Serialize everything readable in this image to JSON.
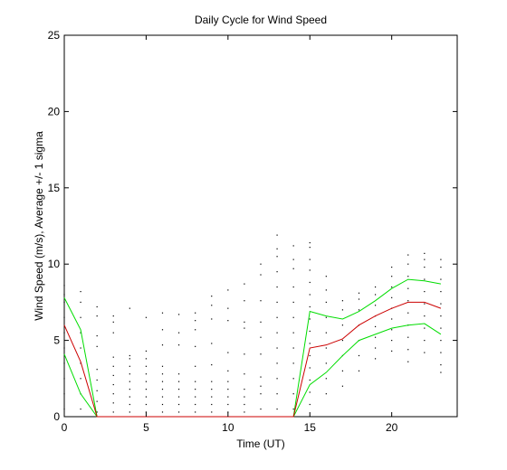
{
  "chart_data": {
    "type": "line",
    "title": "Daily Cycle for Wind Speed",
    "xlabel": "Time (UT)",
    "ylabel": "Wind Speed (m/s), Average +/- 1 sigma",
    "xlim": [
      0,
      24
    ],
    "ylim": [
      0,
      25
    ],
    "xticks": [
      0,
      5,
      10,
      15,
      20
    ],
    "yticks": [
      0,
      5,
      10,
      15,
      20,
      25
    ],
    "grid": false,
    "x": [
      0,
      1,
      2,
      3,
      4,
      5,
      6,
      7,
      8,
      9,
      10,
      11,
      12,
      13,
      14,
      15,
      16,
      17,
      18,
      19,
      20,
      21,
      22,
      23
    ],
    "series": [
      {
        "role": "mean",
        "color": "#cc0000",
        "values": [
          6.0,
          3.6,
          0,
          0,
          0,
          0,
          0,
          0,
          0,
          0,
          0,
          0,
          0,
          0,
          0,
          4.5,
          4.7,
          5.1,
          6.0,
          6.6,
          7.1,
          7.5,
          7.5,
          7.1
        ]
      },
      {
        "role": "mean+1sigma",
        "color": "#00dd00",
        "values": [
          7.8,
          5.7,
          0,
          0,
          0,
          0,
          0,
          0,
          0,
          0,
          0,
          0,
          0,
          0,
          0,
          6.9,
          6.6,
          6.4,
          6.9,
          7.6,
          8.4,
          9.0,
          8.9,
          8.7
        ]
      },
      {
        "role": "mean-1sigma",
        "color": "#00dd00",
        "values": [
          4.1,
          1.5,
          0,
          0,
          0,
          0,
          0,
          0,
          0,
          0,
          0,
          0,
          0,
          0,
          0,
          2.1,
          2.9,
          4.0,
          5.0,
          5.4,
          5.8,
          6.0,
          6.1,
          5.4
        ]
      }
    ],
    "scatter": {
      "color": "#000000",
      "points": [
        [
          0,
          0.5
        ],
        [
          0,
          1.5
        ],
        [
          0,
          2.5
        ],
        [
          0,
          3.5
        ],
        [
          0,
          4.5
        ],
        [
          0,
          5.5
        ],
        [
          0,
          6.5
        ],
        [
          0,
          7.5
        ],
        [
          0,
          8.0
        ],
        [
          0,
          8.6
        ],
        [
          1,
          0.5
        ],
        [
          1,
          1.5
        ],
        [
          1,
          2.5
        ],
        [
          1,
          3.5
        ],
        [
          1,
          4.5
        ],
        [
          1,
          5.5
        ],
        [
          1,
          6.5
        ],
        [
          1,
          7.5
        ],
        [
          1,
          8.2
        ],
        [
          2,
          0.3
        ],
        [
          2,
          1.0
        ],
        [
          2,
          1.7
        ],
        [
          2,
          2.4
        ],
        [
          2,
          3.1
        ],
        [
          2,
          4.6
        ],
        [
          2,
          5.3
        ],
        [
          2,
          6.6
        ],
        [
          2,
          7.2
        ],
        [
          3,
          0.3
        ],
        [
          3,
          0.9
        ],
        [
          3,
          1.5
        ],
        [
          3,
          2.1
        ],
        [
          3,
          2.7
        ],
        [
          3,
          3.3
        ],
        [
          3,
          3.9
        ],
        [
          3,
          5.5
        ],
        [
          3,
          6.2
        ],
        [
          3,
          6.6
        ],
        [
          4,
          0.3
        ],
        [
          4,
          0.8
        ],
        [
          4,
          1.3
        ],
        [
          4,
          1.8
        ],
        [
          4,
          2.3
        ],
        [
          4,
          2.8
        ],
        [
          4,
          3.3
        ],
        [
          4,
          3.8
        ],
        [
          4,
          4.0
        ],
        [
          4,
          7.1
        ],
        [
          5,
          0.3
        ],
        [
          5,
          0.8
        ],
        [
          5,
          1.3
        ],
        [
          5,
          1.8
        ],
        [
          5,
          2.3
        ],
        [
          5,
          2.8
        ],
        [
          5,
          3.3
        ],
        [
          5,
          3.8
        ],
        [
          5,
          4.3
        ],
        [
          5,
          6.5
        ],
        [
          6,
          0.3
        ],
        [
          6,
          0.8
        ],
        [
          6,
          1.3
        ],
        [
          6,
          1.8
        ],
        [
          6,
          2.3
        ],
        [
          6,
          2.8
        ],
        [
          6,
          3.3
        ],
        [
          6,
          4.7
        ],
        [
          6,
          5.7
        ],
        [
          6,
          6.8
        ],
        [
          7,
          0.3
        ],
        [
          7,
          0.8
        ],
        [
          7,
          1.3
        ],
        [
          7,
          1.8
        ],
        [
          7,
          2.3
        ],
        [
          7,
          2.8
        ],
        [
          7,
          4.7
        ],
        [
          7,
          5.5
        ],
        [
          7,
          6.7
        ],
        [
          8,
          0.3
        ],
        [
          8,
          0.8
        ],
        [
          8,
          1.3
        ],
        [
          8,
          1.8
        ],
        [
          8,
          2.3
        ],
        [
          8,
          3.3
        ],
        [
          8,
          4.6
        ],
        [
          8,
          5.7
        ],
        [
          8,
          6.3
        ],
        [
          8,
          6.8
        ],
        [
          9,
          0.3
        ],
        [
          9,
          0.8
        ],
        [
          9,
          1.3
        ],
        [
          9,
          1.8
        ],
        [
          9,
          2.3
        ],
        [
          9,
          3.4
        ],
        [
          9,
          4.8
        ],
        [
          9,
          6.4
        ],
        [
          9,
          7.3
        ],
        [
          9,
          7.9
        ],
        [
          10,
          0.3
        ],
        [
          10,
          0.8
        ],
        [
          10,
          1.3
        ],
        [
          10,
          1.8
        ],
        [
          10,
          2.3
        ],
        [
          10,
          3.0
        ],
        [
          10,
          4.2
        ],
        [
          10,
          6.3
        ],
        [
          10,
          7.1
        ],
        [
          10,
          8.3
        ],
        [
          11,
          0.3
        ],
        [
          11,
          0.8
        ],
        [
          11,
          1.3
        ],
        [
          11,
          1.8
        ],
        [
          11,
          2.8
        ],
        [
          11,
          4.1
        ],
        [
          11,
          5.8
        ],
        [
          11,
          6.2
        ],
        [
          11,
          7.6
        ],
        [
          11,
          8.7
        ],
        [
          12,
          0.5
        ],
        [
          12,
          1.5
        ],
        [
          12,
          2.0
        ],
        [
          12,
          2.6
        ],
        [
          12,
          4.1
        ],
        [
          12,
          5.2
        ],
        [
          12,
          6.2
        ],
        [
          12,
          7.6
        ],
        [
          12,
          9.3
        ],
        [
          12,
          10.0
        ],
        [
          13,
          0.5
        ],
        [
          13,
          1.5
        ],
        [
          13,
          2.5
        ],
        [
          13,
          3.5
        ],
        [
          13,
          4.5
        ],
        [
          13,
          5.5
        ],
        [
          13,
          6.5
        ],
        [
          13,
          7.5
        ],
        [
          13,
          8.5
        ],
        [
          13,
          9.5
        ],
        [
          13,
          10.5
        ],
        [
          13,
          11.0
        ],
        [
          13,
          11.9
        ],
        [
          14,
          0.5
        ],
        [
          14,
          1.5
        ],
        [
          14,
          2.5
        ],
        [
          14,
          3.5
        ],
        [
          14,
          4.5
        ],
        [
          14,
          5.5
        ],
        [
          14,
          6.5
        ],
        [
          14,
          7.5
        ],
        [
          14,
          8.5
        ],
        [
          14,
          9.7
        ],
        [
          14,
          10.3
        ],
        [
          14,
          11.2
        ],
        [
          15,
          0.8
        ],
        [
          15,
          1.6
        ],
        [
          15,
          2.4
        ],
        [
          15,
          3.2
        ],
        [
          15,
          4.0
        ],
        [
          15,
          4.8
        ],
        [
          15,
          5.6
        ],
        [
          15,
          6.4
        ],
        [
          15,
          7.2
        ],
        [
          15,
          8.0
        ],
        [
          15,
          8.8
        ],
        [
          15,
          9.6
        ],
        [
          15,
          10.3
        ],
        [
          15,
          11.1
        ],
        [
          15,
          11.4
        ],
        [
          16,
          1.5
        ],
        [
          16,
          2.5
        ],
        [
          16,
          3.5
        ],
        [
          16,
          4.5
        ],
        [
          16,
          5.5
        ],
        [
          16,
          6.5
        ],
        [
          16,
          7.5
        ],
        [
          16,
          8.3
        ],
        [
          16,
          9.2
        ],
        [
          17,
          2.0
        ],
        [
          17,
          3.0
        ],
        [
          17,
          4.0
        ],
        [
          17,
          5.0
        ],
        [
          17,
          6.0
        ],
        [
          17,
          7.0
        ],
        [
          17,
          7.6
        ],
        [
          18,
          3.0
        ],
        [
          18,
          4.0
        ],
        [
          18,
          5.0
        ],
        [
          18,
          6.0
        ],
        [
          18,
          7.0
        ],
        [
          18,
          7.7
        ],
        [
          18,
          8.1
        ],
        [
          19,
          3.8
        ],
        [
          19,
          4.5
        ],
        [
          19,
          5.2
        ],
        [
          19,
          5.9
        ],
        [
          19,
          6.6
        ],
        [
          19,
          7.3
        ],
        [
          19,
          8.0
        ],
        [
          19,
          8.5
        ],
        [
          20,
          4.3
        ],
        [
          20,
          5.0
        ],
        [
          20,
          5.7
        ],
        [
          20,
          6.4
        ],
        [
          20,
          7.1
        ],
        [
          20,
          7.8
        ],
        [
          20,
          8.5
        ],
        [
          20,
          9.2
        ],
        [
          20,
          9.8
        ],
        [
          21,
          3.6
        ],
        [
          21,
          4.4
        ],
        [
          21,
          5.2
        ],
        [
          21,
          6.0
        ],
        [
          21,
          6.8
        ],
        [
          21,
          7.6
        ],
        [
          21,
          8.4
        ],
        [
          21,
          9.2
        ],
        [
          21,
          10.0
        ],
        [
          21,
          10.6
        ],
        [
          22,
          4.2
        ],
        [
          22,
          5.0
        ],
        [
          22,
          5.8
        ],
        [
          22,
          6.6
        ],
        [
          22,
          7.4
        ],
        [
          22,
          8.2
        ],
        [
          22,
          9.0
        ],
        [
          22,
          9.8
        ],
        [
          22,
          10.3
        ],
        [
          22,
          10.7
        ],
        [
          23,
          2.9
        ],
        [
          23,
          3.4
        ],
        [
          23,
          4.2
        ],
        [
          23,
          5.0
        ],
        [
          23,
          5.8
        ],
        [
          23,
          6.6
        ],
        [
          23,
          7.4
        ],
        [
          23,
          8.2
        ],
        [
          23,
          9.0
        ],
        [
          23,
          9.8
        ],
        [
          23,
          10.3
        ]
      ]
    }
  }
}
